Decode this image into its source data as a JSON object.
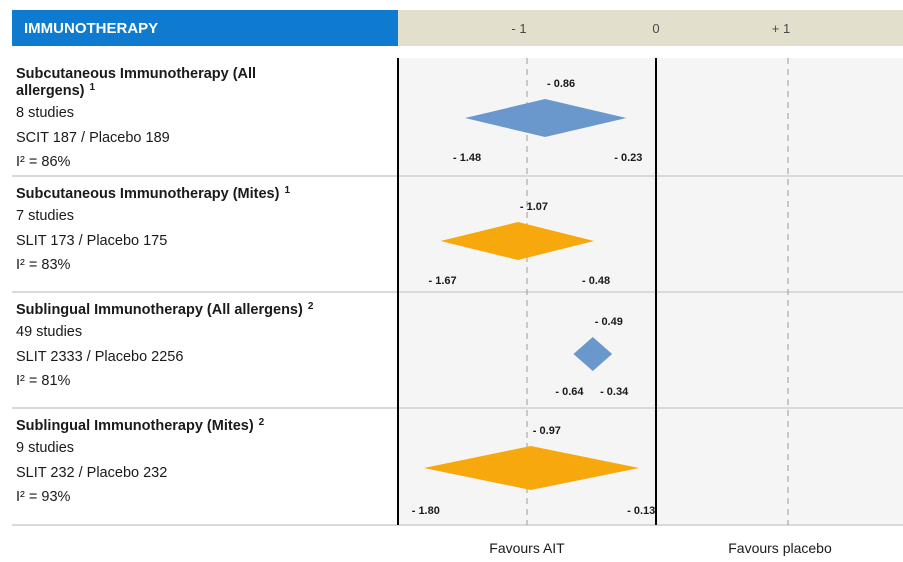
{
  "chart_data": {
    "type": "forest",
    "header": "IMMUNOTHERAPY",
    "x_ticks": [
      {
        "label": "- 1",
        "value": -1
      },
      {
        "label": "0",
        "value": 0
      },
      {
        "label": "+ 1",
        "value": 1
      }
    ],
    "rows": [
      {
        "title": "Subcutaneous Immunotherapy (All allergens)",
        "title_lines": [
          "Subcutaneous Immunotherapy (All",
          "allergens)"
        ],
        "superscript": "1",
        "studies": "8 studies",
        "participants": "SCIT 187 / Placebo 189",
        "i2": "I² = 86%",
        "estimate": -0.86,
        "ci_low": -1.48,
        "ci_high": -0.23,
        "estimate_label": "- 0.86",
        "ci_low_label": "- 1.48",
        "ci_high_label": "- 0.23",
        "color": "#6a98cc"
      },
      {
        "title": "Subcutaneous Immunotherapy (Mites)",
        "title_lines": [
          "Subcutaneous Immunotherapy (Mites)"
        ],
        "superscript": "1",
        "studies": "7 studies",
        "participants": "SLIT 173 / Placebo 175",
        "i2": "I² = 83%",
        "estimate": -1.07,
        "ci_low": -1.67,
        "ci_high": -0.48,
        "estimate_label": "- 1.07",
        "ci_low_label": "- 1.67",
        "ci_high_label": "- 0.48",
        "color": "#f7a80c"
      },
      {
        "title": "Sublingual Immunotherapy (All allergens)",
        "title_lines": [
          "Sublingual Immunotherapy (All allergens)"
        ],
        "superscript": "2",
        "studies": "49 studies",
        "participants": "SLIT 2333 / Placebo 2256",
        "i2": "I² = 81%",
        "estimate": -0.49,
        "ci_low": -0.64,
        "ci_high": -0.34,
        "estimate_label": "- 0.49",
        "ci_low_label": "- 0.64",
        "ci_high_label": "- 0.34",
        "color": "#6a98cc"
      },
      {
        "title": "Sublingual Immunotherapy (Mites)",
        "title_lines": [
          "Sublingual Immunotherapy (Mites)"
        ],
        "superscript": "2",
        "studies": "9 studies",
        "participants": "SLIT 232 / Placebo 232",
        "i2": "I² = 93%",
        "estimate": -0.97,
        "ci_low": -1.8,
        "ci_high": -0.13,
        "estimate_label": "- 0.97",
        "ci_low_label": "- 1.80",
        "ci_high_label": "- 0.13",
        "color": "#f7a80c"
      }
    ],
    "footer": {
      "left": "Favours AIT",
      "right": "Favours placebo"
    },
    "colors": {
      "header_bg": "#0e7bd0",
      "axis_bg": "#e2dfcc",
      "blue": "#6a98cc",
      "orange": "#f7a80c"
    }
  }
}
